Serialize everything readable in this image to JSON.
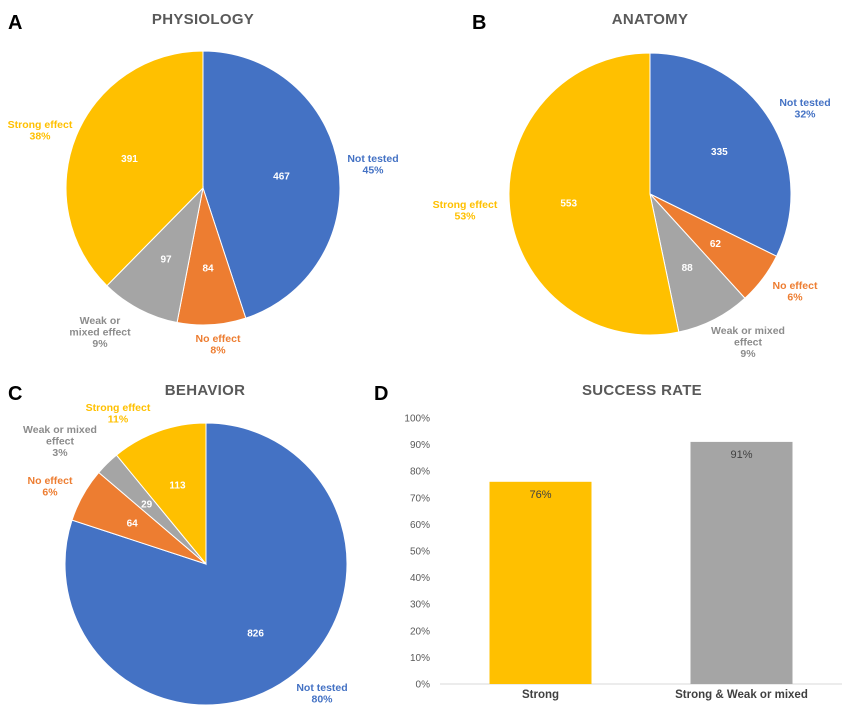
{
  "colors": {
    "not_tested": "#4472C4",
    "no_effect": "#ED7D31",
    "weak_or_mixed": "#A5A5A5",
    "strong": "#FFC000",
    "title_text": "#595959"
  },
  "chart_data": [
    {
      "panel": "A",
      "type": "pie",
      "title": "PHYSIOLOGY",
      "slices": [
        {
          "key": "not_tested",
          "value": 467,
          "label_lines": [
            "Not tested",
            "45%"
          ]
        },
        {
          "key": "no_effect",
          "value": 84,
          "label_lines": [
            "No effect",
            "8%"
          ]
        },
        {
          "key": "weak_or_mixed",
          "value": 97,
          "label_lines": [
            "Weak or",
            "mixed effect",
            "9%"
          ]
        },
        {
          "key": "strong",
          "value": 391,
          "label_lines": [
            "Strong effect",
            "38%"
          ]
        }
      ]
    },
    {
      "panel": "B",
      "type": "pie",
      "title": "ANATOMY",
      "slices": [
        {
          "key": "not_tested",
          "value": 335,
          "label_lines": [
            "Not tested",
            "32%"
          ]
        },
        {
          "key": "no_effect",
          "value": 62,
          "label_lines": [
            "No effect",
            "6%"
          ]
        },
        {
          "key": "weak_or_mixed",
          "value": 88,
          "label_lines": [
            "Weak or mixed",
            "effect",
            "9%"
          ]
        },
        {
          "key": "strong",
          "value": 553,
          "label_lines": [
            "Strong effect",
            "53%"
          ]
        }
      ]
    },
    {
      "panel": "C",
      "type": "pie",
      "title": "BEHAVIOR",
      "slices": [
        {
          "key": "not_tested",
          "value": 826,
          "label_lines": [
            "Not tested",
            "80%"
          ]
        },
        {
          "key": "no_effect",
          "value": 64,
          "label_lines": [
            "No effect",
            "6%"
          ]
        },
        {
          "key": "weak_or_mixed",
          "value": 29,
          "label_lines": [
            "Weak or mixed",
            "effect",
            "3%"
          ]
        },
        {
          "key": "strong",
          "value": 113,
          "label_lines": [
            "Strong effect",
            "11%"
          ]
        }
      ]
    },
    {
      "panel": "D",
      "type": "bar",
      "title": "SUCCESS RATE",
      "categories": [
        "Strong",
        "Strong & Weak or mixed"
      ],
      "values": [
        76,
        91
      ],
      "value_labels": [
        "76%",
        "91%"
      ],
      "bar_colors": [
        "#FFC000",
        "#A5A5A5"
      ],
      "ylim": [
        0,
        100
      ],
      "yticks": [
        "0%",
        "10%",
        "20%",
        "30%",
        "40%",
        "50%",
        "60%",
        "70%",
        "80%",
        "90%",
        "100%"
      ],
      "grid": false
    }
  ]
}
